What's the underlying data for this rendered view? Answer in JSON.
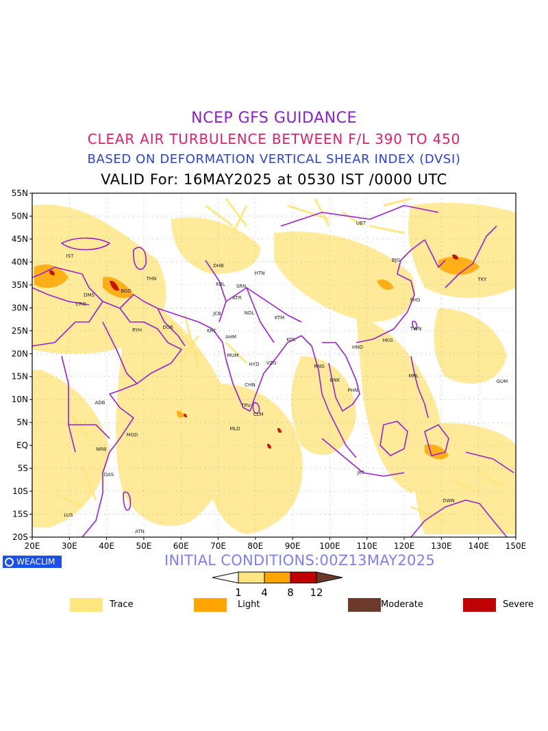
{
  "titles": {
    "line1": "NCEP GFS GUIDANCE",
    "line2": "CLEAR AIR TURBULENCE BETWEEN F/L 390 TO 450",
    "line3": "BASED ON DEFORMATION VERTICAL SHEAR INDEX (DVSI)",
    "line4": "VALID For: 16MAY2025 at 0530 IST /0000 UTC"
  },
  "axes": {
    "lat_labels": [
      "55N",
      "50N",
      "45N",
      "40N",
      "35N",
      "30N",
      "25N",
      "20N",
      "15N",
      "10N",
      "5N",
      "EQ",
      "5S",
      "10S",
      "15S",
      "20S"
    ],
    "lon_labels": [
      "20E",
      "30E",
      "40E",
      "50E",
      "60E",
      "70E",
      "80E",
      "90E",
      "100E",
      "110E",
      "120E",
      "130E",
      "140E",
      "150E"
    ]
  },
  "stations": [
    {
      "code": "UBT"
    },
    {
      "code": "BJG"
    },
    {
      "code": "TKY"
    },
    {
      "code": "SHG"
    },
    {
      "code": "TWN"
    },
    {
      "code": "HKG"
    },
    {
      "code": "HNO"
    },
    {
      "code": "MNL"
    },
    {
      "code": "GUM"
    },
    {
      "code": "BNK"
    },
    {
      "code": "PHN"
    },
    {
      "code": "RNG"
    },
    {
      "code": "KOL"
    },
    {
      "code": "KTM"
    },
    {
      "code": "NDL"
    },
    {
      "code": "HTN"
    },
    {
      "code": "DHB"
    },
    {
      "code": "KBL"
    },
    {
      "code": "SRN"
    },
    {
      "code": "ATR"
    },
    {
      "code": "JCB"
    },
    {
      "code": "KRC"
    },
    {
      "code": "AHM"
    },
    {
      "code": "MUM"
    },
    {
      "code": "HYD"
    },
    {
      "code": "VZG"
    },
    {
      "code": "CHN"
    },
    {
      "code": "TRV"
    },
    {
      "code": "CLM"
    },
    {
      "code": "MLD"
    },
    {
      "code": "JKT"
    },
    {
      "code": "DWN"
    },
    {
      "code": "IST"
    },
    {
      "code": "THN"
    },
    {
      "code": "BGD"
    },
    {
      "code": "DMS"
    },
    {
      "code": "CRO"
    },
    {
      "code": "RYH"
    },
    {
      "code": "DUB"
    },
    {
      "code": "ADB"
    },
    {
      "code": "MGD"
    },
    {
      "code": "NRB"
    },
    {
      "code": "DAS"
    },
    {
      "code": "LUS"
    },
    {
      "code": "ATN"
    }
  ],
  "logo_text": "WEACLIM",
  "initial_conditions": "INITIAL CONDITIONS:00Z13MAY2025",
  "colorbar": {
    "ticks": [
      "1",
      "4",
      "8",
      "12"
    ],
    "colors": [
      "#ffffff",
      "#ffe680",
      "#ffa500",
      "#c00000",
      "#6b3a2a"
    ]
  },
  "legend": [
    {
      "label": "Trace",
      "color": "#ffe680"
    },
    {
      "label": "Light",
      "color": "#ffa500"
    },
    {
      "label": "Moderate",
      "color": "#6b3a2a"
    },
    {
      "label": "Severe",
      "color": "#c00000"
    }
  ],
  "colors": {
    "coastline": "#9b1fcf",
    "trace": "#ffe680",
    "light": "#ffa500",
    "severe": "#c00000"
  }
}
